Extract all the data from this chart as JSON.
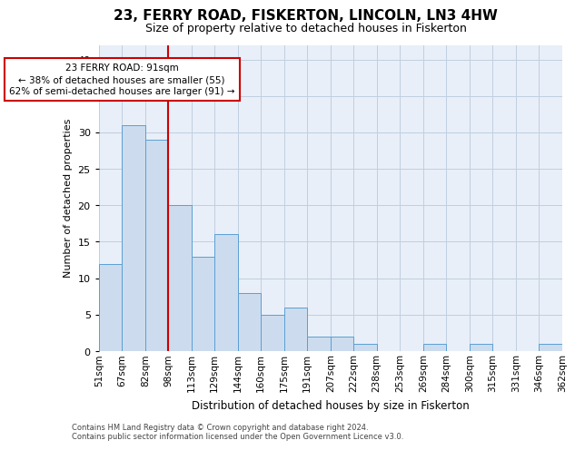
{
  "title": "23, FERRY ROAD, FISKERTON, LINCOLN, LN3 4HW",
  "subtitle": "Size of property relative to detached houses in Fiskerton",
  "xlabel": "Distribution of detached houses by size in Fiskerton",
  "ylabel": "Number of detached properties",
  "bar_values": [
    12,
    31,
    29,
    20,
    13,
    16,
    8,
    5,
    6,
    2,
    2,
    1,
    0,
    0,
    1,
    0,
    1,
    0,
    0,
    1
  ],
  "bin_labels": [
    "51sqm",
    "67sqm",
    "82sqm",
    "98sqm",
    "113sqm",
    "129sqm",
    "144sqm",
    "160sqm",
    "175sqm",
    "191sqm",
    "207sqm",
    "222sqm",
    "238sqm",
    "253sqm",
    "269sqm",
    "284sqm",
    "300sqm",
    "315sqm",
    "331sqm",
    "346sqm",
    "362sqm"
  ],
  "bar_color": "#ccdcee",
  "bar_edge_color": "#5a9fd4",
  "grid_color": "#c0cfe0",
  "background_color": "#e8eff8",
  "annotation_text_line1": "23 FERRY ROAD: 91sqm",
  "annotation_text_line2": "← 38% of detached houses are smaller (55)",
  "annotation_text_line3": "62% of semi-detached houses are larger (91) →",
  "annotation_box_color": "#cc0000",
  "vline_x": 2.5,
  "ylim": [
    0,
    42
  ],
  "yticks": [
    0,
    5,
    10,
    15,
    20,
    25,
    30,
    35,
    40
  ],
  "footnote1": "Contains HM Land Registry data © Crown copyright and database right 2024.",
  "footnote2": "Contains public sector information licensed under the Open Government Licence v3.0."
}
